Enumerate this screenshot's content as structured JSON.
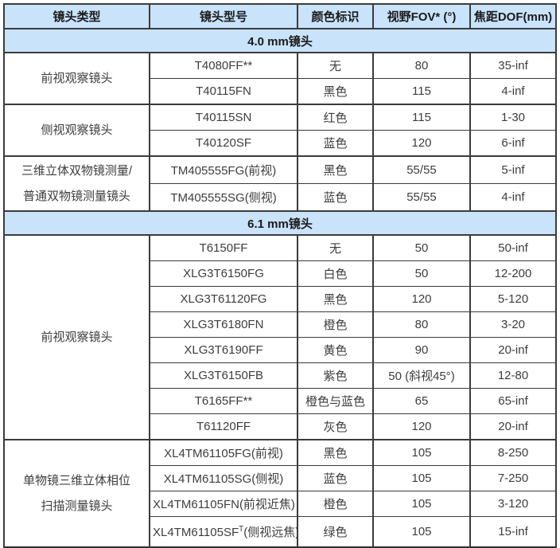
{
  "colors": {
    "header_background": "#c9e3fb",
    "border": "#3b3b3b",
    "header_text": "#1a1a1a",
    "cell_text": "#3d3d3d"
  },
  "table": {
    "headers": {
      "lens_type": "镜头类型",
      "lens_model": "镜头型号",
      "color_mark": "颜色标识",
      "fov": "视野FOV* (°)",
      "dof": "焦距DOF(mm)"
    },
    "sections": [
      {
        "title": "4.0 mm镜头",
        "groups": [
          {
            "type": "前视观察镜头",
            "rows": [
              {
                "model": "T4080FF**",
                "color": "无",
                "fov": "80",
                "dof": "35-inf"
              },
              {
                "model": "T40115FN",
                "color": "黑色",
                "fov": "115",
                "dof": "4-inf"
              }
            ]
          },
          {
            "type": "侧视观察镜头",
            "rows": [
              {
                "model": "T40115SN",
                "color": "红色",
                "fov": "115",
                "dof": "1-30"
              },
              {
                "model": "T40120SF",
                "color": "蓝色",
                "fov": "120",
                "dof": "6-inf"
              }
            ]
          },
          {
            "type": "三维立体双物镜测量/\n普通双物镜测量镜头",
            "rows": [
              {
                "model": "TM405555FG(前视)",
                "color": "黑色",
                "fov": "55/55",
                "dof": "5-inf"
              },
              {
                "model": "TM405555SG(侧视)",
                "color": "蓝色",
                "fov": "55/55",
                "dof": "4-inf"
              }
            ]
          }
        ]
      },
      {
        "title": "6.1 mm镜头",
        "groups": [
          {
            "type": "前视观察镜头",
            "rows": [
              {
                "model": "T6150FF",
                "color": "无",
                "fov": "50",
                "dof": "50-inf"
              },
              {
                "model": "XLG3T6150FG",
                "color": "白色",
                "fov": "50",
                "dof": "12-200"
              },
              {
                "model": "XLG3T61120FG",
                "color": "黑色",
                "fov": "120",
                "dof": "5-120"
              },
              {
                "model": "XLG3T6180FN",
                "color": "橙色",
                "fov": "80",
                "dof": "3-20"
              },
              {
                "model": "XLG3T6190FF",
                "color": "黄色",
                "fov": "90",
                "dof": "20-inf"
              },
              {
                "model": "XLG3T6150FB",
                "color": "紫色",
                "fov": "50 (斜视45°)",
                "dof": "12-80"
              },
              {
                "model": "T6165FF**",
                "color": "橙色与蓝色",
                "fov": "65",
                "dof": "65-inf"
              },
              {
                "model": "T61120FF",
                "color": "灰色",
                "fov": "120",
                "dof": "20-inf"
              }
            ]
          },
          {
            "type": "单物镜三维立体相位\n扫描测量镜头",
            "rows": [
              {
                "model": "XL4TM61105FG(前视)",
                "color": "黑色",
                "fov": "105",
                "dof": "8-250"
              },
              {
                "model": "XL4TM61105SG(侧视)",
                "color": "蓝色",
                "fov": "105",
                "dof": "7-250"
              },
              {
                "model": "XL4TM61105FN(前视近焦)",
                "color": "橙色",
                "fov": "105",
                "dof": "3-120"
              },
              {
                "model": "XL4TM61105SF",
                "model_sup": "T",
                "model_suffix": "(侧视远焦)",
                "color": "绿色",
                "fov": "105",
                "dof": "15-inf",
                "tall": true
              }
            ]
          }
        ]
      }
    ]
  }
}
